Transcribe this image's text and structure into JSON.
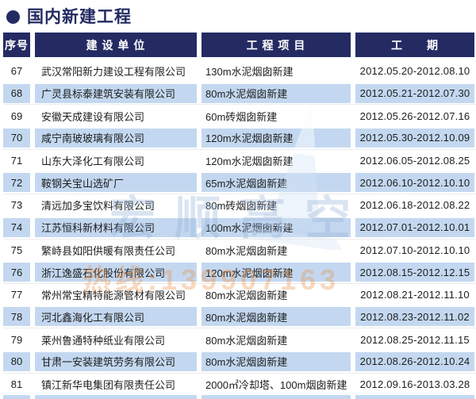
{
  "title": {
    "text": "国内新建工程"
  },
  "table": {
    "headers": [
      "序号",
      "建 设 单 位",
      "工 程 项 目",
      "工　　期"
    ],
    "rows": [
      {
        "no": "67",
        "company": "武汉常阳新力建设工程有限公司",
        "project": "130m水泥烟囱新建",
        "period": "2012.05.20-2012.08.10"
      },
      {
        "no": "68",
        "company": "广灵县标泰建筑安装有限公司",
        "project": "80m水泥烟囱新建",
        "period": "2012.05.21-2012.07.30"
      },
      {
        "no": "69",
        "company": "安徽天成建设有限公司",
        "project": "60m砖烟囱新建",
        "period": "2012.05.26-2012.07.16"
      },
      {
        "no": "70",
        "company": "咸宁南玻玻璃有限公司",
        "project": "120m水泥烟囱新建",
        "period": "2012.05.30-2012.10.09"
      },
      {
        "no": "71",
        "company": "山东大泽化工有限公司",
        "project": "120m水泥烟囱新建",
        "period": "2012.06.05-2012.08.25"
      },
      {
        "no": "72",
        "company": "鞍钢关宝山选矿厂",
        "project": "65m水泥烟囱新建",
        "period": "2012.06.10-2012.10.10"
      },
      {
        "no": "73",
        "company": "清远加多宝饮料有限公司",
        "project": "80m砖烟囱新建",
        "period": "2012.06.18-2012.08.22"
      },
      {
        "no": "74",
        "company": "江苏恒科新材料有限公司",
        "project": "100m水泥烟囱新建",
        "period": "2012.07.01-2012.10.01"
      },
      {
        "no": "75",
        "company": "繁峙县如阳供暖有限责任公司",
        "project": "80m水泥烟囱新建",
        "period": "2012.07.10-2012.10.10"
      },
      {
        "no": "76",
        "company": "浙江逸盛石化股份有限公司",
        "project": "120m水泥烟囱新建",
        "period": "2012.08.15-2012.12.15"
      },
      {
        "no": "77",
        "company": "常州常宝精特能源管材有限公司",
        "project": "80m水泥烟囱新建",
        "period": "2012.08.21-2012.11.10"
      },
      {
        "no": "78",
        "company": "河北鑫海化工有限公司",
        "project": "80m水泥烟囱新建",
        "period": "2012.08.23-2012.11.02"
      },
      {
        "no": "79",
        "company": "莱州鲁通特种纸业有限公司",
        "project": "80m水泥烟囱新建",
        "period": "2012.08.25-2012.11.15"
      },
      {
        "no": "80",
        "company": "甘肃一安装建筑劳务有限公司",
        "project": "80m水泥烟囱新建",
        "period": "2012.08.26-2012.10.24"
      },
      {
        "no": "81",
        "company": "镇江新华电集团有限责任公司",
        "project": "2000㎡冷却塔、100m烟囱新建",
        "period": "2012.09.16-2013.03.28"
      }
    ]
  },
  "watermark": {
    "brand": "宏顺高空",
    "hotline": "热线:139907163"
  },
  "colors": {
    "navy": "#242b63",
    "row_blue": "#c3d8f0",
    "watermark_orange": "#e98c3e",
    "watermark_blue": "#94b0d6"
  }
}
